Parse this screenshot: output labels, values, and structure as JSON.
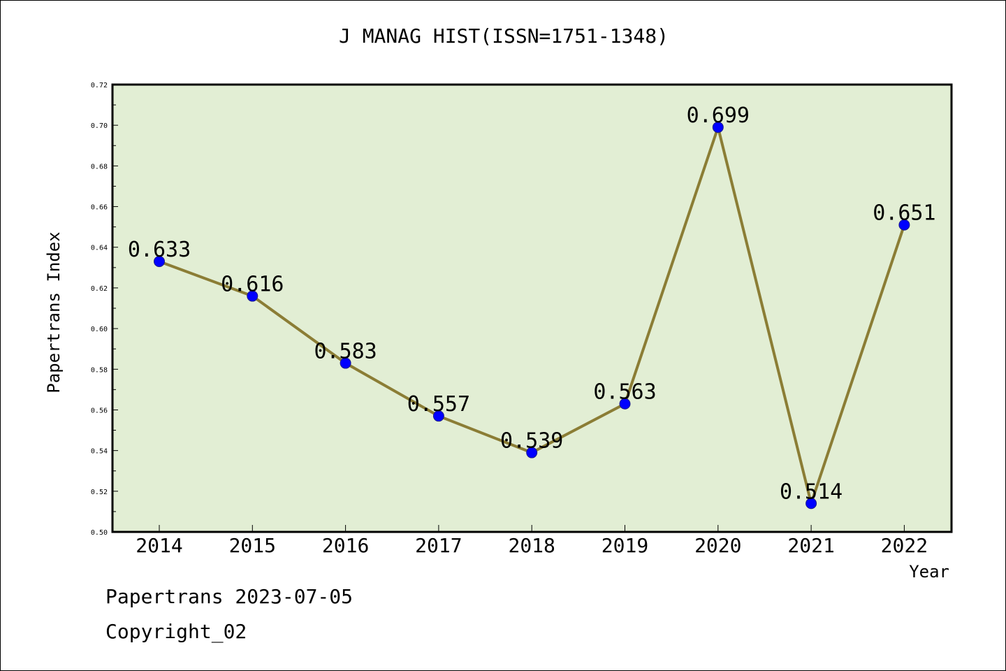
{
  "header": {
    "title": "J MANAG HIST(ISSN=1751-1348)"
  },
  "footer": {
    "line1": "Papertrans 2023-07-05",
    "line2": "Copyright_02"
  },
  "colors": {
    "plot_bg": "#e2eed4",
    "line": "#8b7d35",
    "marker": "#0000ff"
  },
  "chart_data": {
    "type": "line",
    "title": "J MANAG HIST(ISSN=1751-1348)",
    "xlabel": "Year",
    "ylabel": "Papertrans Index",
    "categories": [
      "2014",
      "2015",
      "2016",
      "2017",
      "2018",
      "2019",
      "2020",
      "2021",
      "2022"
    ],
    "values": [
      0.633,
      0.616,
      0.583,
      0.557,
      0.539,
      0.563,
      0.699,
      0.514,
      0.651
    ],
    "data_labels": [
      "0.633",
      "0.616",
      "0.583",
      "0.557",
      "0.539",
      "0.563",
      "0.699",
      "0.514",
      "0.651"
    ],
    "y_ticks": [
      "0.50",
      "0.52",
      "0.54",
      "0.56",
      "0.58",
      "0.60",
      "0.62",
      "0.64",
      "0.66",
      "0.68",
      "0.70",
      "0.72"
    ],
    "ylim": [
      0.5,
      0.72
    ],
    "grid": false,
    "legend": "none"
  }
}
